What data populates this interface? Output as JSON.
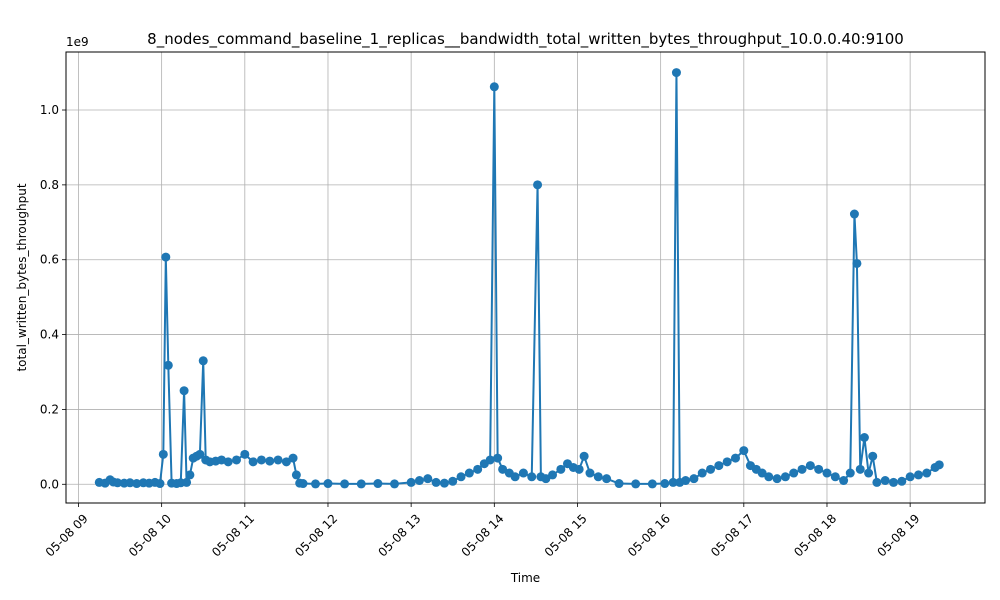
{
  "chart_data": {
    "type": "line",
    "title": "8_nodes_command_baseline_1_replicas__bandwidth_total_written_bytes_throughput_10.0.0.40:9100",
    "xlabel": "Time",
    "ylabel": "total_written_bytes_throughput",
    "y_offset_label": "1e9",
    "grid": true,
    "marker": "circle",
    "color": "#1f77b4",
    "x_unit": "hours",
    "xlim": [
      8.85,
      19.9
    ],
    "ylim": [
      -0.05,
      1.155
    ],
    "x_ticks": [
      {
        "value": 9,
        "label": "05-08 09"
      },
      {
        "value": 10,
        "label": "05-08 10"
      },
      {
        "value": 11,
        "label": "05-08 11"
      },
      {
        "value": 12,
        "label": "05-08 12"
      },
      {
        "value": 13,
        "label": "05-08 13"
      },
      {
        "value": 14,
        "label": "05-08 14"
      },
      {
        "value": 15,
        "label": "05-08 15"
      },
      {
        "value": 16,
        "label": "05-08 16"
      },
      {
        "value": 17,
        "label": "05-08 17"
      },
      {
        "value": 18,
        "label": "05-08 18"
      },
      {
        "value": 19,
        "label": "05-08 19"
      }
    ],
    "y_ticks": [
      {
        "value": 0.0,
        "label": "0.0"
      },
      {
        "value": 0.2,
        "label": "0.2"
      },
      {
        "value": 0.4,
        "label": "0.4"
      },
      {
        "value": 0.6,
        "label": "0.6"
      },
      {
        "value": 0.8,
        "label": "0.8"
      },
      {
        "value": 1.0,
        "label": "1.0"
      }
    ],
    "x": [
      9.25,
      9.32,
      9.38,
      9.42,
      9.47,
      9.55,
      9.62,
      9.7,
      9.78,
      9.85,
      9.92,
      9.98,
      10.02,
      10.05,
      10.08,
      10.12,
      10.18,
      10.23,
      10.27,
      10.3,
      10.34,
      10.38,
      10.42,
      10.46,
      10.5,
      10.53,
      10.58,
      10.65,
      10.72,
      10.8,
      10.9,
      11.0,
      11.1,
      11.2,
      11.3,
      11.4,
      11.5,
      11.58,
      11.62,
      11.66,
      11.7,
      11.85,
      12.0,
      12.2,
      12.4,
      12.6,
      12.8,
      13.0,
      13.1,
      13.2,
      13.3,
      13.4,
      13.5,
      13.6,
      13.7,
      13.8,
      13.88,
      13.95,
      14.0,
      14.04,
      14.1,
      14.18,
      14.25,
      14.35,
      14.45,
      14.52,
      14.56,
      14.62,
      14.7,
      14.8,
      14.88,
      14.95,
      15.02,
      15.08,
      15.15,
      15.25,
      15.35,
      15.5,
      15.7,
      15.9,
      16.05,
      16.15,
      16.19,
      16.23,
      16.3,
      16.4,
      16.5,
      16.6,
      16.7,
      16.8,
      16.9,
      17.0,
      17.08,
      17.15,
      17.22,
      17.3,
      17.4,
      17.5,
      17.6,
      17.7,
      17.8,
      17.9,
      18.0,
      18.1,
      18.2,
      18.28,
      18.33,
      18.36,
      18.4,
      18.45,
      18.5,
      18.55,
      18.6,
      18.7,
      18.8,
      18.9,
      19.0,
      19.1,
      19.2,
      19.3,
      19.35
    ],
    "values": [
      0.005,
      0.003,
      0.012,
      0.006,
      0.004,
      0.003,
      0.004,
      0.002,
      0.004,
      0.003,
      0.005,
      0.002,
      0.08,
      0.607,
      0.318,
      0.003,
      0.002,
      0.004,
      0.25,
      0.005,
      0.025,
      0.07,
      0.075,
      0.08,
      0.33,
      0.065,
      0.06,
      0.062,
      0.065,
      0.06,
      0.065,
      0.08,
      0.06,
      0.065,
      0.062,
      0.065,
      0.06,
      0.07,
      0.025,
      0.003,
      0.002,
      0.001,
      0.002,
      0.001,
      0.001,
      0.002,
      0.001,
      0.005,
      0.01,
      0.015,
      0.005,
      0.003,
      0.008,
      0.02,
      0.03,
      0.04,
      0.055,
      0.065,
      1.062,
      0.07,
      0.04,
      0.03,
      0.02,
      0.03,
      0.02,
      0.8,
      0.02,
      0.015,
      0.025,
      0.04,
      0.055,
      0.045,
      0.04,
      0.075,
      0.03,
      0.02,
      0.015,
      0.002,
      0.001,
      0.001,
      0.002,
      0.005,
      1.1,
      0.005,
      0.01,
      0.015,
      0.03,
      0.04,
      0.05,
      0.06,
      0.07,
      0.09,
      0.05,
      0.04,
      0.03,
      0.02,
      0.015,
      0.02,
      0.03,
      0.04,
      0.05,
      0.04,
      0.03,
      0.02,
      0.01,
      0.03,
      0.722,
      0.59,
      0.04,
      0.125,
      0.03,
      0.075,
      0.005,
      0.01,
      0.005,
      0.008,
      0.02,
      0.025,
      0.03,
      0.045,
      0.052
    ]
  }
}
